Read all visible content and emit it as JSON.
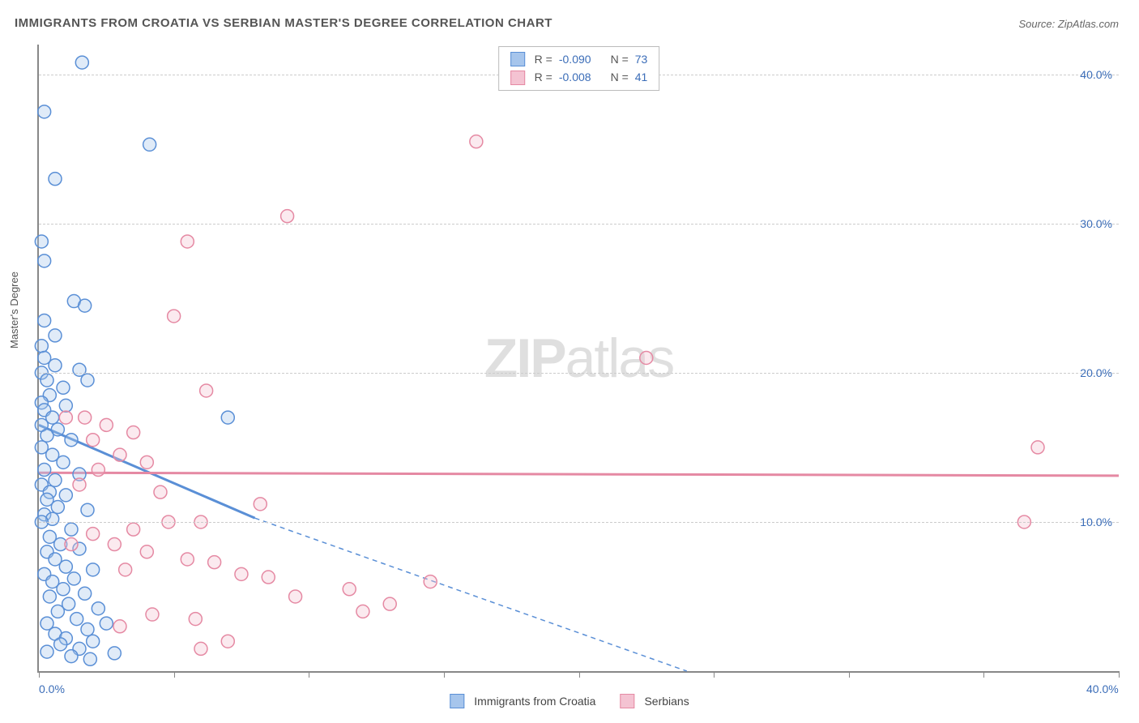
{
  "title": "IMMIGRANTS FROM CROATIA VS SERBIAN MASTER'S DEGREE CORRELATION CHART",
  "source": "Source: ZipAtlas.com",
  "ylabel": "Master's Degree",
  "watermark": {
    "bold": "ZIP",
    "rest": "atlas"
  },
  "chart": {
    "type": "scatter",
    "xlim": [
      0,
      40
    ],
    "ylim": [
      0,
      42
    ],
    "x_ticks": [
      0,
      5,
      10,
      15,
      20,
      25,
      30,
      35,
      40
    ],
    "x_tick_labels": {
      "0": "0.0%",
      "40": "40.0%"
    },
    "y_gridlines": [
      10,
      20,
      30,
      40
    ],
    "y_tick_labels": {
      "10": "10.0%",
      "20": "20.0%",
      "30": "30.0%",
      "40": "40.0%"
    },
    "gridline_color": "#cccccc",
    "axis_color": "#888888",
    "background_color": "#ffffff",
    "marker_radius": 8,
    "marker_stroke_width": 1.5,
    "marker_fill_opacity": 0.35,
    "series": [
      {
        "name": "Immigrants from Croatia",
        "color_stroke": "#5a8fd6",
        "color_fill": "#a6c5ec",
        "R": "-0.090",
        "N": "73",
        "trend": {
          "y_at_x0": 16.5,
          "slope_per_x": -0.78,
          "solid_until_x": 8.0,
          "dash_until_x": 24.0
        },
        "points": [
          [
            1.6,
            40.8
          ],
          [
            0.2,
            37.5
          ],
          [
            4.1,
            35.3
          ],
          [
            0.6,
            33.0
          ],
          [
            0.1,
            28.8
          ],
          [
            0.2,
            27.5
          ],
          [
            1.3,
            24.8
          ],
          [
            1.7,
            24.5
          ],
          [
            0.2,
            23.5
          ],
          [
            0.6,
            22.5
          ],
          [
            0.1,
            21.8
          ],
          [
            0.2,
            21.0
          ],
          [
            0.6,
            20.5
          ],
          [
            1.5,
            20.2
          ],
          [
            0.1,
            20.0
          ],
          [
            0.3,
            19.5
          ],
          [
            1.8,
            19.5
          ],
          [
            0.9,
            19.0
          ],
          [
            0.4,
            18.5
          ],
          [
            0.1,
            18.0
          ],
          [
            1.0,
            17.8
          ],
          [
            0.2,
            17.5
          ],
          [
            0.5,
            17.0
          ],
          [
            7.0,
            17.0
          ],
          [
            0.1,
            16.5
          ],
          [
            0.7,
            16.2
          ],
          [
            0.3,
            15.8
          ],
          [
            1.2,
            15.5
          ],
          [
            0.1,
            15.0
          ],
          [
            0.5,
            14.5
          ],
          [
            0.9,
            14.0
          ],
          [
            0.2,
            13.5
          ],
          [
            1.5,
            13.2
          ],
          [
            0.6,
            12.8
          ],
          [
            0.1,
            12.5
          ],
          [
            0.4,
            12.0
          ],
          [
            1.0,
            11.8
          ],
          [
            0.3,
            11.5
          ],
          [
            0.7,
            11.0
          ],
          [
            1.8,
            10.8
          ],
          [
            0.2,
            10.5
          ],
          [
            0.5,
            10.2
          ],
          [
            0.1,
            10.0
          ],
          [
            1.2,
            9.5
          ],
          [
            0.4,
            9.0
          ],
          [
            0.8,
            8.5
          ],
          [
            1.5,
            8.2
          ],
          [
            0.3,
            8.0
          ],
          [
            0.6,
            7.5
          ],
          [
            1.0,
            7.0
          ],
          [
            2.0,
            6.8
          ],
          [
            0.2,
            6.5
          ],
          [
            1.3,
            6.2
          ],
          [
            0.5,
            6.0
          ],
          [
            0.9,
            5.5
          ],
          [
            1.7,
            5.2
          ],
          [
            0.4,
            5.0
          ],
          [
            1.1,
            4.5
          ],
          [
            2.2,
            4.2
          ],
          [
            0.7,
            4.0
          ],
          [
            1.4,
            3.5
          ],
          [
            0.3,
            3.2
          ],
          [
            2.5,
            3.2
          ],
          [
            1.8,
            2.8
          ],
          [
            0.6,
            2.5
          ],
          [
            1.0,
            2.2
          ],
          [
            2.0,
            2.0
          ],
          [
            0.8,
            1.8
          ],
          [
            1.5,
            1.5
          ],
          [
            0.3,
            1.3
          ],
          [
            2.8,
            1.2
          ],
          [
            1.2,
            1.0
          ],
          [
            1.9,
            0.8
          ]
        ]
      },
      {
        "name": "Serbians",
        "color_stroke": "#e589a3",
        "color_fill": "#f4c3d2",
        "R": "-0.008",
        "N": "41",
        "trend": {
          "y_at_x0": 13.3,
          "slope_per_x": -0.005,
          "solid_until_x": 40.0,
          "dash_until_x": 40.0
        },
        "points": [
          [
            16.2,
            35.5
          ],
          [
            9.2,
            30.5
          ],
          [
            5.5,
            28.8
          ],
          [
            5.0,
            23.8
          ],
          [
            22.5,
            21.0
          ],
          [
            6.2,
            18.8
          ],
          [
            1.0,
            17.0
          ],
          [
            1.7,
            17.0
          ],
          [
            2.5,
            16.5
          ],
          [
            3.5,
            16.0
          ],
          [
            2.0,
            15.5
          ],
          [
            37.0,
            15.0
          ],
          [
            3.0,
            14.5
          ],
          [
            4.0,
            14.0
          ],
          [
            2.2,
            13.5
          ],
          [
            1.5,
            12.5
          ],
          [
            4.5,
            12.0
          ],
          [
            8.2,
            11.2
          ],
          [
            36.5,
            10.0
          ],
          [
            6.0,
            10.0
          ],
          [
            4.8,
            10.0
          ],
          [
            3.5,
            9.5
          ],
          [
            2.0,
            9.2
          ],
          [
            1.2,
            8.5
          ],
          [
            2.8,
            8.5
          ],
          [
            4.0,
            8.0
          ],
          [
            5.5,
            7.5
          ],
          [
            6.5,
            7.3
          ],
          [
            3.2,
            6.8
          ],
          [
            7.5,
            6.5
          ],
          [
            8.5,
            6.3
          ],
          [
            14.5,
            6.0
          ],
          [
            11.5,
            5.5
          ],
          [
            9.5,
            5.0
          ],
          [
            13.0,
            4.5
          ],
          [
            12.0,
            4.0
          ],
          [
            4.2,
            3.8
          ],
          [
            5.8,
            3.5
          ],
          [
            3.0,
            3.0
          ],
          [
            7.0,
            2.0
          ],
          [
            6.0,
            1.5
          ]
        ]
      }
    ]
  },
  "legend_bottom": [
    {
      "label": "Immigrants from Croatia",
      "fill": "#a6c5ec",
      "stroke": "#5a8fd6"
    },
    {
      "label": "Serbians",
      "fill": "#f4c3d2",
      "stroke": "#e589a3"
    }
  ]
}
